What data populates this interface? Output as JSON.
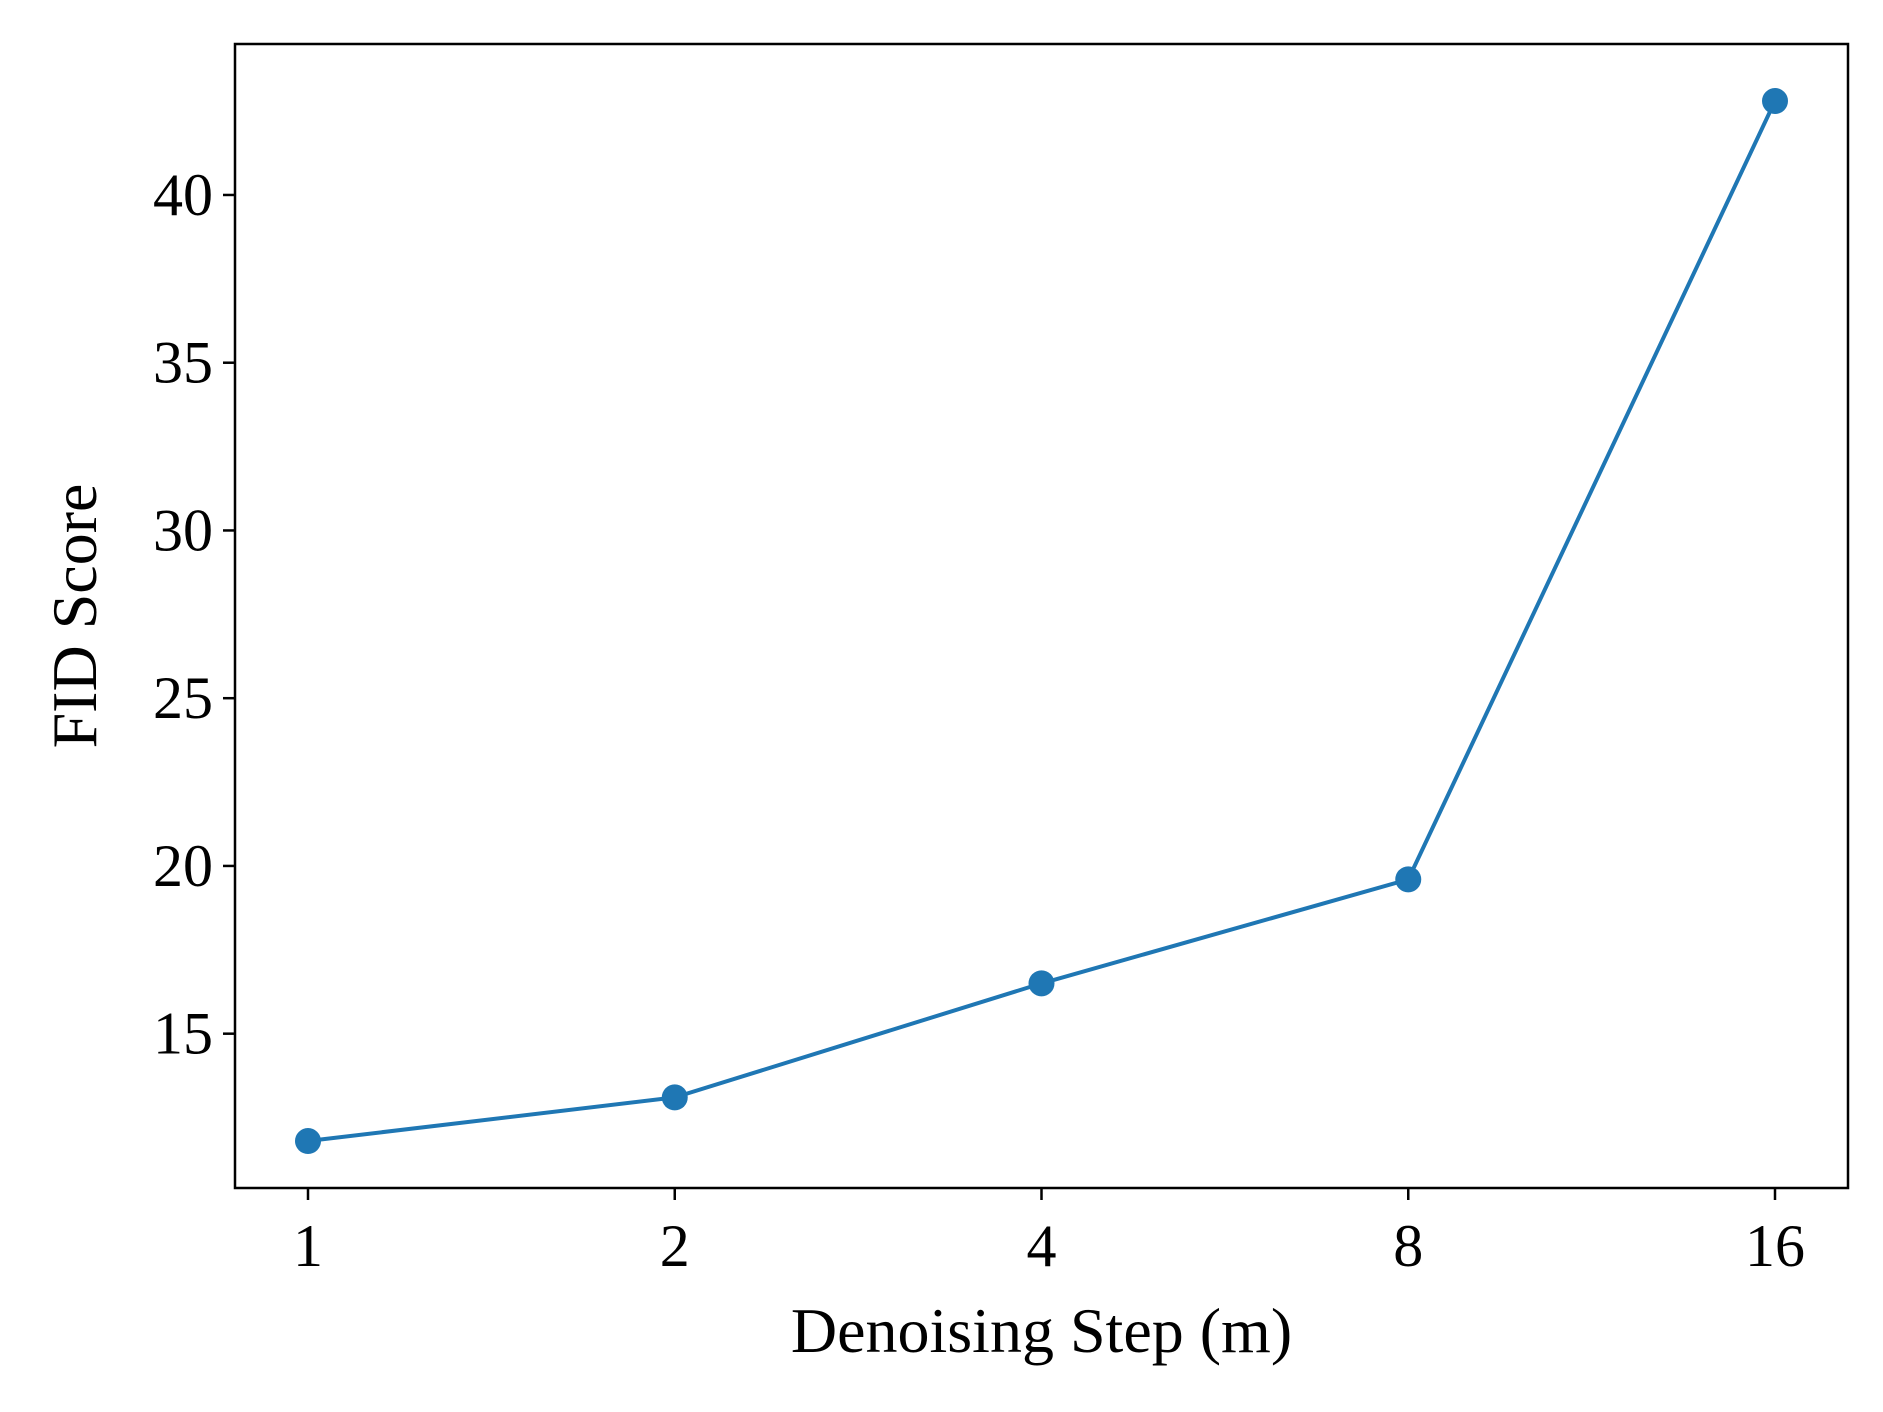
{
  "chart_data": {
    "type": "line",
    "title": "",
    "xlabel": "Denoising Step (m)",
    "ylabel": "FID Score",
    "x": [
      1,
      2,
      4,
      8,
      16
    ],
    "xscale": "log2",
    "xticks": [
      "1",
      "2",
      "4",
      "8",
      "16"
    ],
    "yticks": [
      15,
      20,
      25,
      30,
      35,
      40
    ],
    "ylim": [
      10.4,
      44.5
    ],
    "grid": false,
    "legend": "none",
    "series": [
      {
        "values": [
          11.8,
          13.1,
          16.5,
          19.6,
          42.8
        ],
        "color": "#1f77b4",
        "marker": "circle"
      }
    ]
  }
}
